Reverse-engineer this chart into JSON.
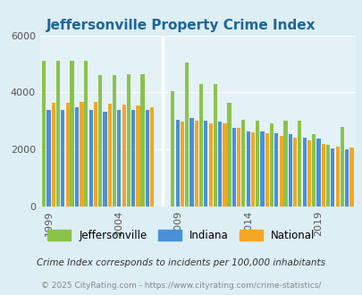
{
  "title": "Jeffersonville Property Crime Index",
  "title_color": "#1a6699",
  "subtitle": "Crime Index corresponds to incidents per 100,000 inhabitants",
  "footer": "© 2025 CityRating.com - https://www.cityrating.com/crime-statistics/",
  "years": [
    1999,
    2000,
    2001,
    2002,
    2003,
    2004,
    2005,
    2006,
    2009,
    2010,
    2011,
    2012,
    2013,
    2014,
    2015,
    2016,
    2017,
    2018,
    2019,
    2020,
    2021
  ],
  "jeffersonville": [
    5100,
    5100,
    5100,
    5100,
    4600,
    4600,
    4650,
    4650,
    4050,
    5050,
    4300,
    4300,
    3650,
    3050,
    3000,
    2900,
    3000,
    3000,
    2550,
    2150,
    2800
  ],
  "indiana": [
    3380,
    3380,
    3480,
    3380,
    3320,
    3380,
    3380,
    3380,
    3050,
    3100,
    3020,
    2980,
    2750,
    2630,
    2620,
    2560,
    2550,
    2420,
    2380,
    2050,
    2020
  ],
  "national": [
    3650,
    3650,
    3680,
    3680,
    3620,
    3580,
    3540,
    3480,
    2970,
    3000,
    2930,
    2900,
    2750,
    2600,
    2560,
    2470,
    2400,
    2330,
    2200,
    2100,
    2080
  ],
  "bar_colors": {
    "jeffersonville": "#8bc34a",
    "indiana": "#4a90d9",
    "national": "#f5a623"
  },
  "bg_color": "#ddeef5",
  "plot_bg": "#e4f2f8",
  "ylim": [
    0,
    6000
  ],
  "yticks": [
    0,
    2000,
    4000,
    6000
  ],
  "tick_years": [
    1999,
    2004,
    2009,
    2014,
    2019
  ],
  "legend_labels": [
    "Jeffersonville",
    "Indiana",
    "National"
  ]
}
